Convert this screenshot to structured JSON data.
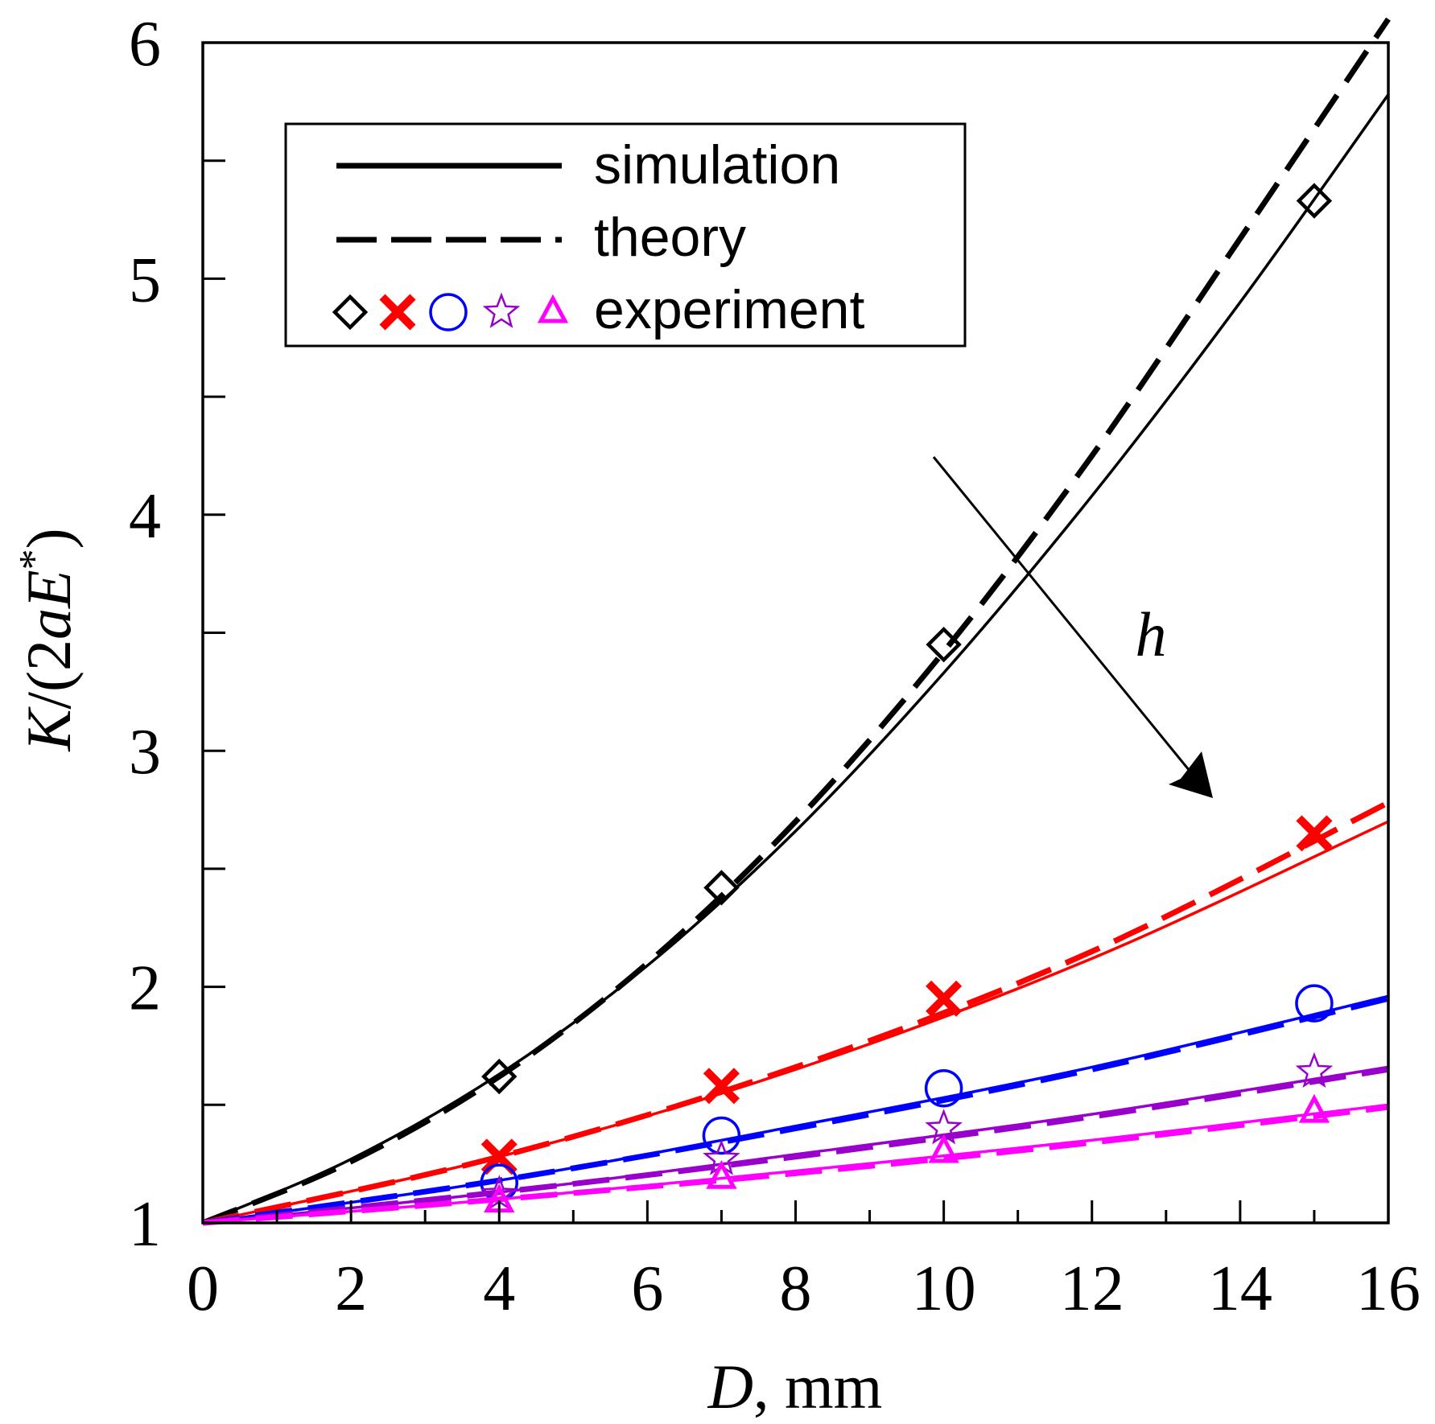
{
  "chart_data": {
    "type": "line",
    "title": "",
    "xlabel": "D, mm",
    "ylabel": "K/(2aE*)",
    "xlabel_italic": "D",
    "xlabel_rest": ", mm",
    "ylabel_italic_a": "K",
    "ylabel_mid": "/(2",
    "ylabel_italic_b": "aE",
    "ylabel_sup": "*",
    "ylabel_end": ")",
    "xlim": [
      0,
      16
    ],
    "ylim": [
      1,
      6
    ],
    "xticks": [
      0,
      2,
      4,
      6,
      8,
      10,
      12,
      14,
      16
    ],
    "xtick_labels": [
      "0",
      "2",
      "4",
      "6",
      "8",
      "10",
      "12",
      "14",
      "16"
    ],
    "yticks": [
      1,
      2,
      3,
      4,
      5,
      6
    ],
    "ytick_labels": [
      "1",
      "2",
      "3",
      "4",
      "5",
      "6"
    ],
    "grid": false,
    "annotation": {
      "text": "h",
      "arrow_from": [
        9.9,
        4.25
      ],
      "arrow_to": [
        13.7,
        2.83
      ]
    },
    "legend": {
      "position": "top-left",
      "entries": [
        {
          "label": "simulation",
          "style": "solid"
        },
        {
          "label": "theory",
          "style": "dashed"
        },
        {
          "label": "experiment",
          "style": "markers"
        }
      ]
    },
    "series": [
      {
        "name": "series-1",
        "color": "#000000",
        "marker": "diamond",
        "sim": {
          "x": [
            0,
            2,
            4,
            6,
            8,
            10,
            12,
            14,
            16
          ],
          "y": [
            1,
            1.27,
            1.63,
            2.09,
            2.66,
            3.33,
            4.08,
            4.9,
            5.78
          ]
        },
        "theory": {
          "x": [
            0,
            2,
            4,
            6,
            8,
            10,
            12,
            14,
            16
          ],
          "y": [
            1,
            1.26,
            1.62,
            2.1,
            2.7,
            3.42,
            4.25,
            5.17,
            6.1
          ]
        },
        "exp": {
          "x": [
            4,
            7,
            10,
            15
          ],
          "y": [
            1.62,
            2.42,
            3.45,
            5.33
          ]
        }
      },
      {
        "name": "series-2",
        "color": "#ff0000",
        "marker": "cross",
        "sim": {
          "x": [
            0,
            4,
            8,
            12,
            16
          ],
          "y": [
            1,
            1.28,
            1.65,
            2.12,
            2.7
          ]
        },
        "theory": {
          "x": [
            0,
            4,
            8,
            12,
            16
          ],
          "y": [
            1,
            1.28,
            1.66,
            2.15,
            2.78
          ]
        },
        "exp": {
          "x": [
            4,
            7,
            10,
            15
          ],
          "y": [
            1.28,
            1.58,
            1.95,
            2.65
          ]
        }
      },
      {
        "name": "series-3",
        "color": "#0000ff",
        "marker": "circle",
        "sim": {
          "x": [
            0,
            4,
            8,
            12,
            16
          ],
          "y": [
            1,
            1.18,
            1.41,
            1.66,
            1.96
          ]
        },
        "theory": {
          "x": [
            0,
            4,
            8,
            12,
            16
          ],
          "y": [
            1,
            1.18,
            1.4,
            1.65,
            1.95
          ]
        },
        "exp": {
          "x": [
            4,
            7,
            10,
            15
          ],
          "y": [
            1.17,
            1.37,
            1.57,
            1.93
          ]
        }
      },
      {
        "name": "series-4",
        "color": "#9900cc",
        "marker": "star",
        "sim": {
          "x": [
            0,
            4,
            8,
            12,
            16
          ],
          "y": [
            1,
            1.13,
            1.29,
            1.46,
            1.66
          ]
        },
        "theory": {
          "x": [
            0,
            4,
            8,
            12,
            16
          ],
          "y": [
            1,
            1.13,
            1.28,
            1.45,
            1.65
          ]
        },
        "exp": {
          "x": [
            4,
            7,
            10,
            15
          ],
          "y": [
            1.12,
            1.27,
            1.4,
            1.64
          ]
        }
      },
      {
        "name": "series-5",
        "color": "#ff00ff",
        "marker": "triangle",
        "sim": {
          "x": [
            0,
            4,
            8,
            12,
            16
          ],
          "y": [
            1,
            1.1,
            1.22,
            1.35,
            1.5
          ]
        },
        "theory": {
          "x": [
            0,
            4,
            8,
            12,
            16
          ],
          "y": [
            1,
            1.1,
            1.21,
            1.34,
            1.49
          ]
        },
        "exp": {
          "x": [
            4,
            7,
            10,
            15
          ],
          "y": [
            1.09,
            1.19,
            1.3,
            1.47
          ]
        }
      }
    ]
  }
}
